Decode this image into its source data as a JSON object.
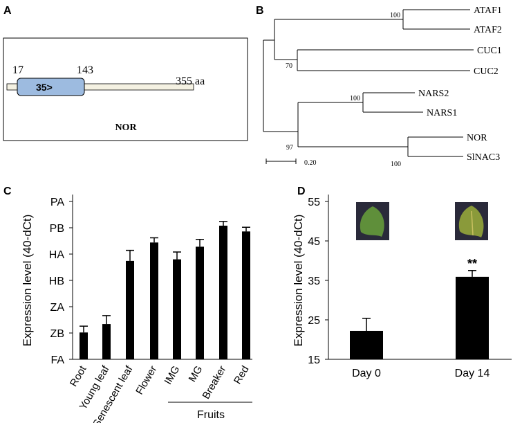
{
  "panel_a": {
    "label": "A",
    "start": "17",
    "domain_end": "143",
    "length": "355 aa",
    "domain": "35>",
    "protein": "NOR"
  },
  "panel_b": {
    "label": "B",
    "leaves": [
      "ATAF1",
      "ATAF2",
      "CUC1",
      "CUC2",
      "NARS2",
      "NARS1",
      "NOR",
      "SlNAC3"
    ],
    "bootstrap": [
      "100",
      "70",
      "100",
      "97",
      "100"
    ],
    "scale": "0.20"
  },
  "chart_data": [
    {
      "type": "bar",
      "panel": "C",
      "y_label": "Expression level (40-dCt)",
      "categories": [
        "Root",
        "Young leaf",
        "Senescent leaf",
        "Flower",
        "IMG",
        "MG",
        "Breaker",
        "Red"
      ],
      "values": [
        20.1,
        21.7,
        33.7,
        37.2,
        34.0,
        36.4,
        40.4,
        39.3
      ],
      "errors": [
        1.2,
        1.6,
        2.0,
        0.9,
        1.4,
        1.4,
        0.8,
        0.8
      ],
      "color": "#000000",
      "ylim": [
        15,
        45
      ],
      "yticks": [
        {
          "value": 15,
          "label": "FA"
        },
        {
          "value": 20,
          "label": "ZB"
        },
        {
          "value": 25,
          "label": "ZA"
        },
        {
          "value": 30,
          "label": "HB"
        },
        {
          "value": 35,
          "label": "HA"
        },
        {
          "value": 40,
          "label": "PB"
        },
        {
          "value": 45,
          "label": "PA"
        }
      ],
      "group_label": "Fruits"
    },
    {
      "type": "bar",
      "panel": "D",
      "y_label": "Expression level (40-dCt)",
      "categories": [
        "Day 0",
        "Day 14"
      ],
      "values": [
        22.2,
        35.9
      ],
      "errors": [
        3.2,
        1.6
      ],
      "color": "#000000",
      "ylim": [
        15,
        55
      ],
      "yticks": [
        15,
        25,
        35,
        45,
        55
      ],
      "annotation": "**"
    }
  ]
}
